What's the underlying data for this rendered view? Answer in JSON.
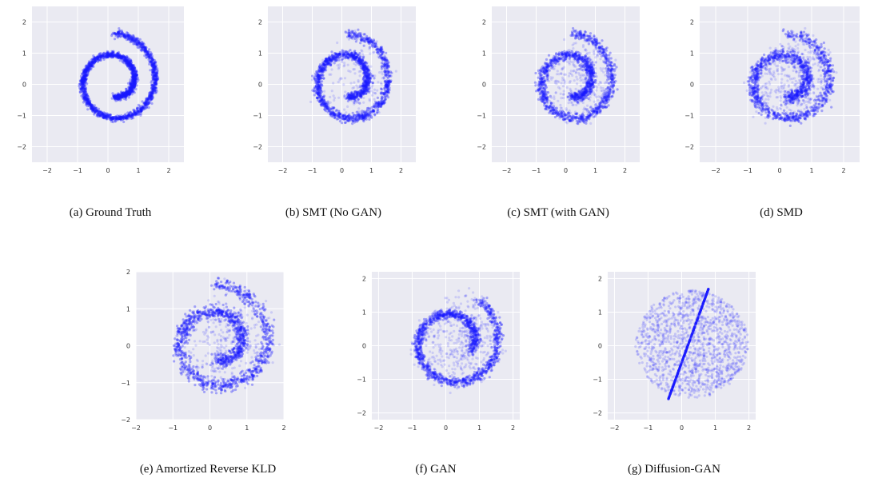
{
  "figure": {
    "panels": [
      {
        "id": "a",
        "caption": "(a) Ground Truth"
      },
      {
        "id": "b",
        "caption": "(b) SMT (No GAN)"
      },
      {
        "id": "c",
        "caption": "(c) SMT (with GAN)"
      },
      {
        "id": "d",
        "caption": "(d) SMD"
      },
      {
        "id": "e",
        "caption": "(e) Amortized Reverse KLD"
      },
      {
        "id": "f",
        "caption": "(f) GAN"
      },
      {
        "id": "g",
        "caption": "(g) Diffusion-GAN"
      }
    ]
  },
  "colors": {
    "background": "#eaeaf2",
    "grid": "#ffffff",
    "points": "#1a1aff"
  },
  "chart_data": [
    {
      "type": "scatter",
      "title": "",
      "xlabel": "",
      "ylabel": "",
      "xlim": [
        -2.5,
        2.5
      ],
      "ylim": [
        -2.5,
        2.5
      ],
      "xticks": [
        "−2",
        "−1",
        "0",
        "1",
        "2"
      ],
      "yticks": [
        "−2",
        "−1",
        "0",
        "1",
        "2"
      ],
      "grid": true,
      "points_per_panel": 2400,
      "description_of_series": "sampled 2D points",
      "series": [
        {
          "points_generator": "swiss_roll",
          "noise": 0.05,
          "outlier_fraction": 0.0
        }
      ]
    },
    {
      "type": "scatter",
      "xlim": [
        -2.5,
        2.5
      ],
      "ylim": [
        -2.5,
        2.5
      ],
      "xticks": [
        "−2",
        "−1",
        "0",
        "1",
        "2"
      ],
      "yticks": [
        "−2",
        "−1",
        "0",
        "1",
        "2"
      ],
      "grid": true,
      "series": [
        {
          "points_generator": "swiss_roll",
          "noise": 0.07,
          "outlier_fraction": 0.12
        }
      ]
    },
    {
      "type": "scatter",
      "xlim": [
        -2.5,
        2.5
      ],
      "ylim": [
        -2.5,
        2.5
      ],
      "xticks": [
        "−2",
        "−1",
        "0",
        "1",
        "2"
      ],
      "yticks": [
        "−2",
        "−1",
        "0",
        "1",
        "2"
      ],
      "grid": true,
      "series": [
        {
          "points_generator": "swiss_roll",
          "noise": 0.08,
          "outlier_fraction": 0.25
        }
      ]
    },
    {
      "type": "scatter",
      "xlim": [
        -2.5,
        2.5
      ],
      "ylim": [
        -2.5,
        2.5
      ],
      "xticks": [
        "−2",
        "−1",
        "0",
        "1",
        "2"
      ],
      "yticks": [
        "−2",
        "−1",
        "0",
        "1",
        "2"
      ],
      "grid": true,
      "series": [
        {
          "points_generator": "swiss_roll",
          "noise": 0.09,
          "outlier_fraction": 0.3
        }
      ]
    },
    {
      "type": "scatter",
      "xlim": [
        -2.0,
        2.0
      ],
      "ylim": [
        -2.0,
        2.0
      ],
      "xticks": [
        "−2",
        "−1",
        "0",
        "1",
        "2"
      ],
      "yticks": [
        "−2",
        "−1",
        "0",
        "1",
        "2"
      ],
      "grid": true,
      "series": [
        {
          "points_generator": "swiss_roll",
          "noise": 0.09,
          "outlier_fraction": 0.22
        }
      ]
    },
    {
      "type": "scatter",
      "xlim": [
        -2.2,
        2.2
      ],
      "ylim": [
        -2.2,
        2.2
      ],
      "xticks": [
        "−2",
        "−1",
        "0",
        "1",
        "2"
      ],
      "yticks": [
        "−2",
        "−1",
        "0",
        "1",
        "2"
      ],
      "grid": true,
      "series": [
        {
          "points_generator": "swiss_roll_partial",
          "noise": 0.07,
          "outlier_fraction": 0.3
        }
      ]
    },
    {
      "type": "scatter",
      "xlim": [
        -2.2,
        2.2
      ],
      "ylim": [
        -2.2,
        2.2
      ],
      "xticks": [
        "−2",
        "−1",
        "0",
        "1",
        "2"
      ],
      "yticks": [
        "−2",
        "−1",
        "0",
        "1",
        "2"
      ],
      "grid": true,
      "series": [
        {
          "points_generator": "filled_disk",
          "noise": 0.05,
          "outlier_fraction": 0.0
        }
      ]
    }
  ]
}
